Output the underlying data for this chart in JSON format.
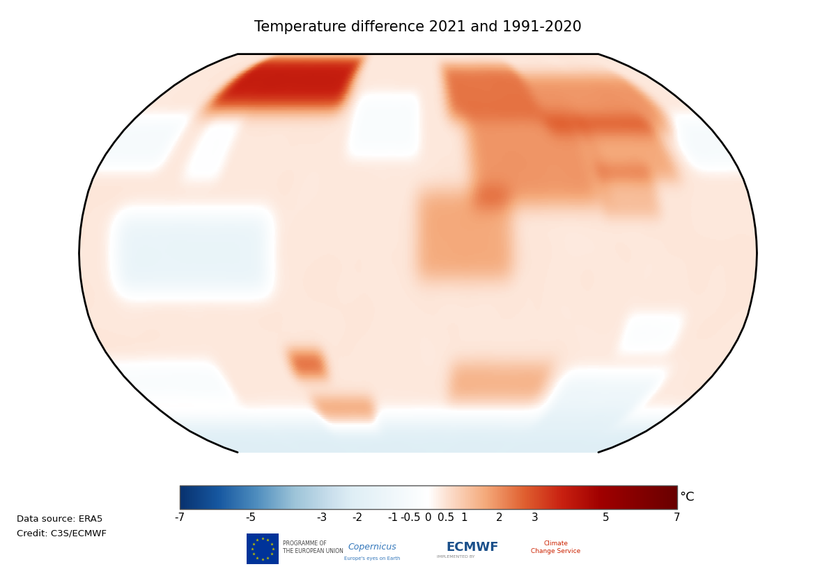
{
  "title": "Temperature difference 2021 and 1991-2020",
  "title_fontsize": 15,
  "colorbar_ticks": [
    -7,
    -5,
    -3,
    -2,
    -1,
    -0.5,
    0,
    0.5,
    1,
    2,
    3,
    5,
    7
  ],
  "colorbar_label": "°C",
  "data_source_text": "Data source: ERA5",
  "credit_text": "Credit: C3S/ECMWF",
  "vmin": -7,
  "vmax": 7,
  "background_color": "#ffffff",
  "coastline_color": "#000000",
  "coastline_linewidth": 0.8,
  "border_linewidth": 0.4,
  "colormap": [
    [
      0.0,
      "#08316e"
    ],
    [
      0.077,
      "#1657a0"
    ],
    [
      0.154,
      "#4e8dbe"
    ],
    [
      0.231,
      "#9dc4d8"
    ],
    [
      0.308,
      "#cce0ed"
    ],
    [
      0.346,
      "#deeef5"
    ],
    [
      0.5,
      "#ffffff"
    ],
    [
      0.538,
      "#fce0d0"
    ],
    [
      0.615,
      "#f4a97a"
    ],
    [
      0.692,
      "#e06030"
    ],
    [
      0.769,
      "#c82010"
    ],
    [
      0.846,
      "#a00000"
    ],
    [
      1.0,
      "#680000"
    ]
  ]
}
